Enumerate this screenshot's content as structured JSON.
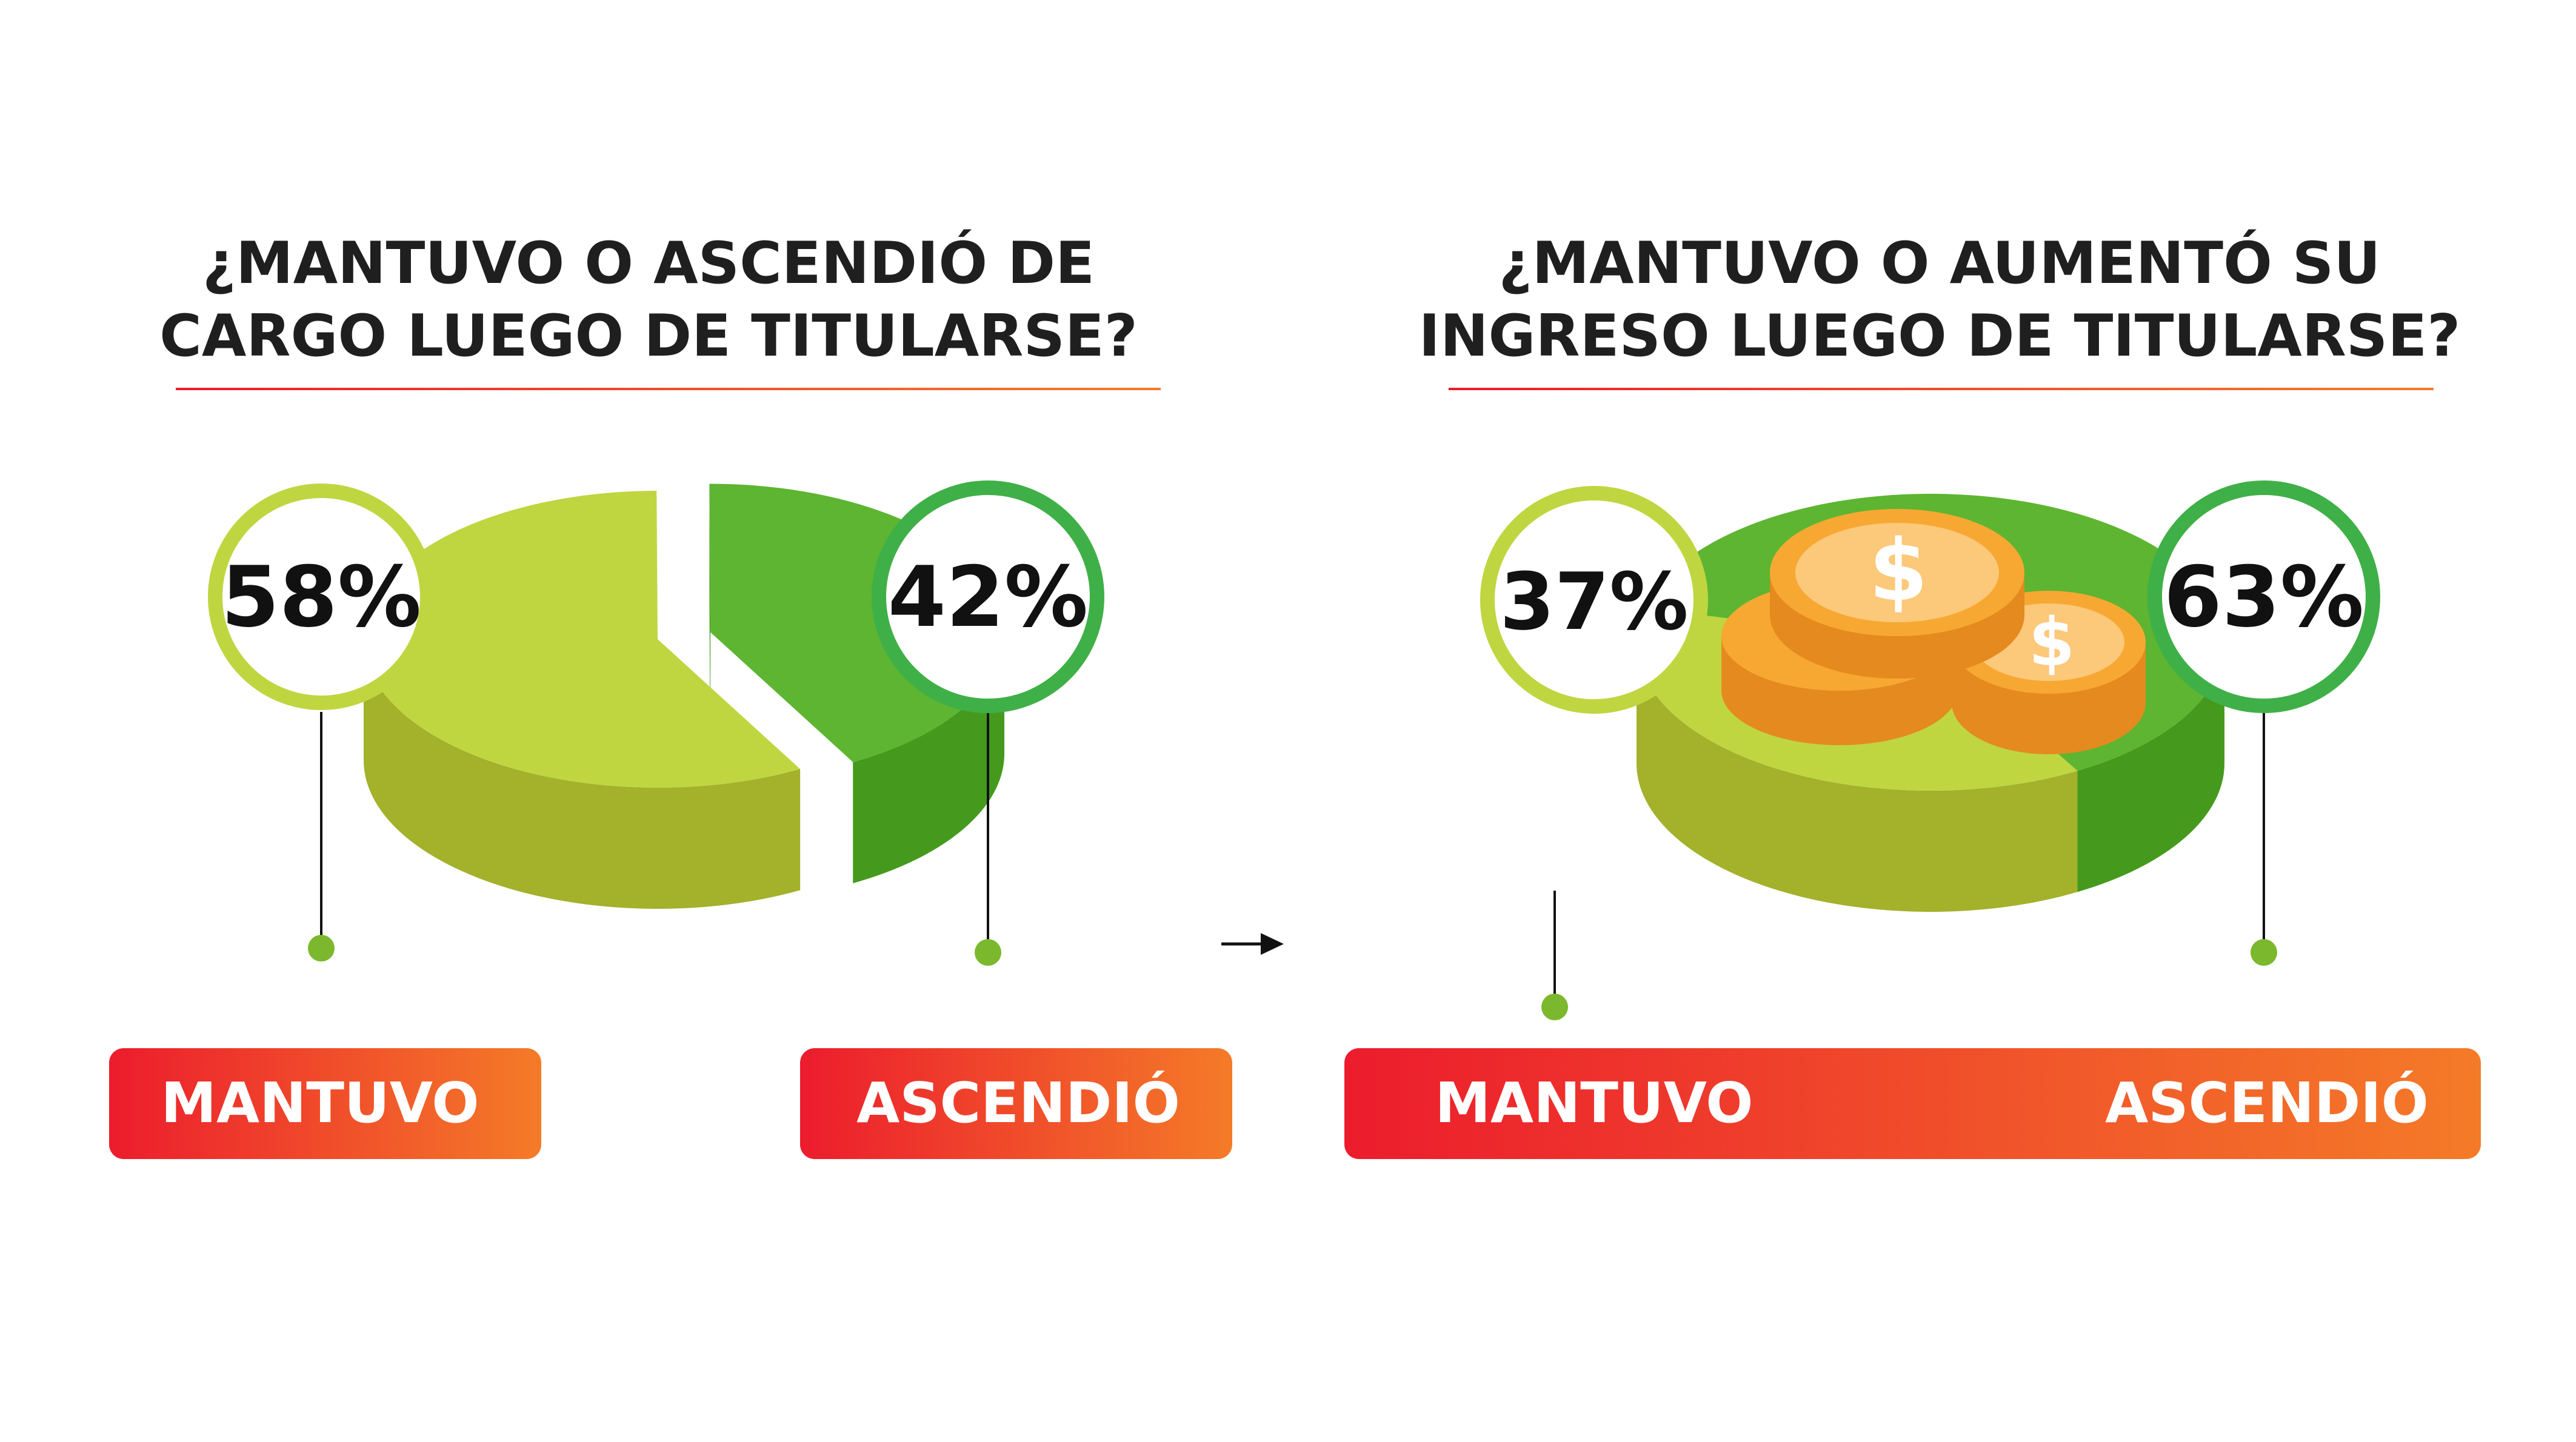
{
  "colors": {
    "light_green": "#BFD641",
    "light_green_side": "#A3B12B",
    "dark_green": "#5DB531",
    "dark_green_side": "#459A1E",
    "ring_light": "#BFD641",
    "ring_dark": "#3FB047",
    "dot": "#7CB82E",
    "gradient_start": "#EC1C2D",
    "gradient_end": "#F47B28",
    "coin": "#F7A832",
    "coin_light": "#FCC87A",
    "coin_dark": "#E58A1F"
  },
  "chart_data": [
    {
      "type": "pie",
      "title": "¿MANTUVO O ASCENDIÓ DE CARGO LUEGO DE TITULARSE?",
      "title_lines": [
        "¿MANTUVO O ASCENDIÓ DE",
        "CARGO LUEGO DE TITULARSE?"
      ],
      "categories": [
        "MANTUVO",
        "ASCENDIÓ"
      ],
      "values": [
        58,
        42
      ],
      "value_labels": [
        "58%",
        "42%"
      ]
    },
    {
      "type": "pie",
      "title": "¿MANTUVO O AUMENTÓ SU INGRESO LUEGO DE TITULARSE?",
      "title_lines": [
        "¿MANTUVO O AUMENTÓ SU",
        "INGRESO LUEGO DE TITULARSE?"
      ],
      "categories": [
        "MANTUVO",
        "ASCENDIÓ"
      ],
      "values": [
        37,
        63
      ],
      "value_labels": [
        "37%",
        "63%"
      ],
      "icon": "dollar-coins-icon"
    }
  ]
}
